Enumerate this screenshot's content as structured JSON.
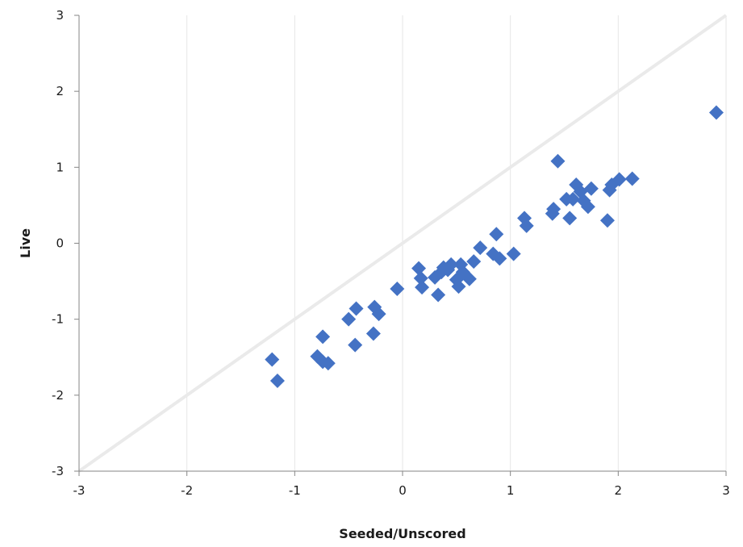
{
  "chart_data": {
    "type": "scatter",
    "xlabel": "Seeded/Unscored",
    "ylabel": "Live",
    "xlim": [
      -3,
      3
    ],
    "ylim": [
      -3,
      3
    ],
    "xticks": [
      "-3",
      "-2",
      "-1",
      "0",
      "1",
      "2",
      "3"
    ],
    "yticks": [
      "-3",
      "-2",
      "-1",
      "0",
      "1",
      "2",
      "3"
    ],
    "grid": "vertical",
    "legend": "none",
    "marker": "diamond",
    "marker_color": "#4472c4",
    "reference_line": {
      "from": [
        -3,
        -3
      ],
      "to": [
        3,
        3
      ],
      "color": "#eaeaea"
    },
    "series": [
      {
        "points": [
          [
            -1.21,
            -1.53
          ],
          [
            -1.16,
            -1.81
          ],
          [
            -0.79,
            -1.49
          ],
          [
            -0.74,
            -1.56
          ],
          [
            -0.74,
            -1.23
          ],
          [
            -0.69,
            -1.58
          ],
          [
            -0.5,
            -1.0
          ],
          [
            -0.44,
            -1.34
          ],
          [
            -0.43,
            -0.86
          ],
          [
            -0.27,
            -1.19
          ],
          [
            -0.26,
            -0.84
          ],
          [
            -0.22,
            -0.93
          ],
          [
            -0.05,
            -0.6
          ],
          [
            0.15,
            -0.33
          ],
          [
            0.17,
            -0.46
          ],
          [
            0.18,
            -0.58
          ],
          [
            0.3,
            -0.45
          ],
          [
            0.33,
            -0.68
          ],
          [
            0.36,
            -0.38
          ],
          [
            0.38,
            -0.32
          ],
          [
            0.42,
            -0.35
          ],
          [
            0.45,
            -0.28
          ],
          [
            0.5,
            -0.48
          ],
          [
            0.52,
            -0.57
          ],
          [
            0.54,
            -0.28
          ],
          [
            0.56,
            -0.38
          ],
          [
            0.62,
            -0.47
          ],
          [
            0.66,
            -0.24
          ],
          [
            0.72,
            -0.06
          ],
          [
            0.84,
            -0.14
          ],
          [
            0.87,
            0.12
          ],
          [
            0.9,
            -0.2
          ],
          [
            1.03,
            -0.14
          ],
          [
            1.13,
            0.33
          ],
          [
            1.15,
            0.23
          ],
          [
            1.39,
            0.39
          ],
          [
            1.4,
            0.45
          ],
          [
            1.44,
            1.08
          ],
          [
            1.52,
            0.58
          ],
          [
            1.55,
            0.33
          ],
          [
            1.58,
            0.58
          ],
          [
            1.61,
            0.77
          ],
          [
            1.65,
            0.68
          ],
          [
            1.68,
            0.56
          ],
          [
            1.72,
            0.48
          ],
          [
            1.75,
            0.72
          ],
          [
            1.9,
            0.3
          ],
          [
            1.92,
            0.7
          ],
          [
            1.94,
            0.77
          ],
          [
            2.01,
            0.84
          ],
          [
            2.13,
            0.85
          ],
          [
            2.91,
            1.72
          ]
        ]
      }
    ]
  }
}
